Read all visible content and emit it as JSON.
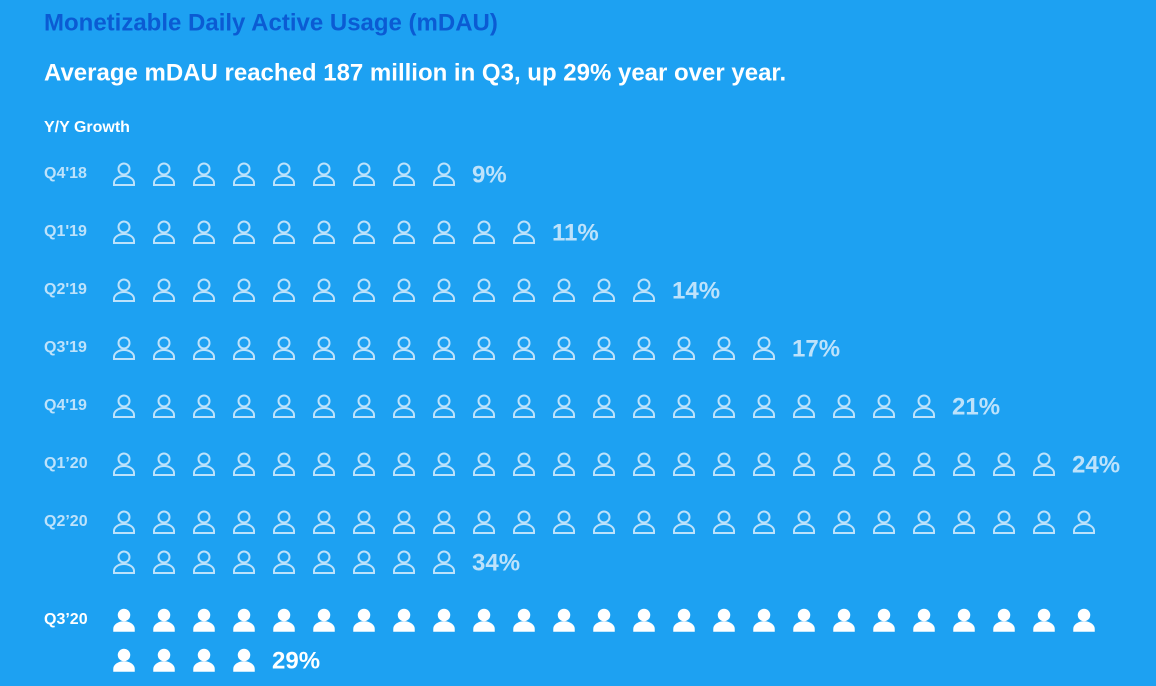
{
  "chart_data": {
    "type": "pictogram",
    "title": "Monetizable Daily Active Usage (mDAU)",
    "subtitle": "Average mDAU reached 187 million in Q3, up 29% year over year.",
    "axis_label": "Y/Y Growth",
    "categories": [
      "Q4'18",
      "Q1'19",
      "Q2'19",
      "Q3'19",
      "Q4'19",
      "Q1’20",
      "Q2’20",
      "Q3’20"
    ],
    "values": [
      9,
      11,
      14,
      17,
      21,
      24,
      34,
      29
    ],
    "value_labels": [
      "9%",
      "11%",
      "14%",
      "17%",
      "21%",
      "24%",
      "34%",
      "29%"
    ],
    "colors": [
      "#bde2fb",
      "#bde2fb",
      "#bde2fb",
      "#bde2fb",
      "#bde2fb",
      "#bde2fb",
      "#bde2fb",
      "#ffffff"
    ],
    "filled": [
      false,
      false,
      false,
      false,
      false,
      false,
      false,
      true
    ]
  }
}
